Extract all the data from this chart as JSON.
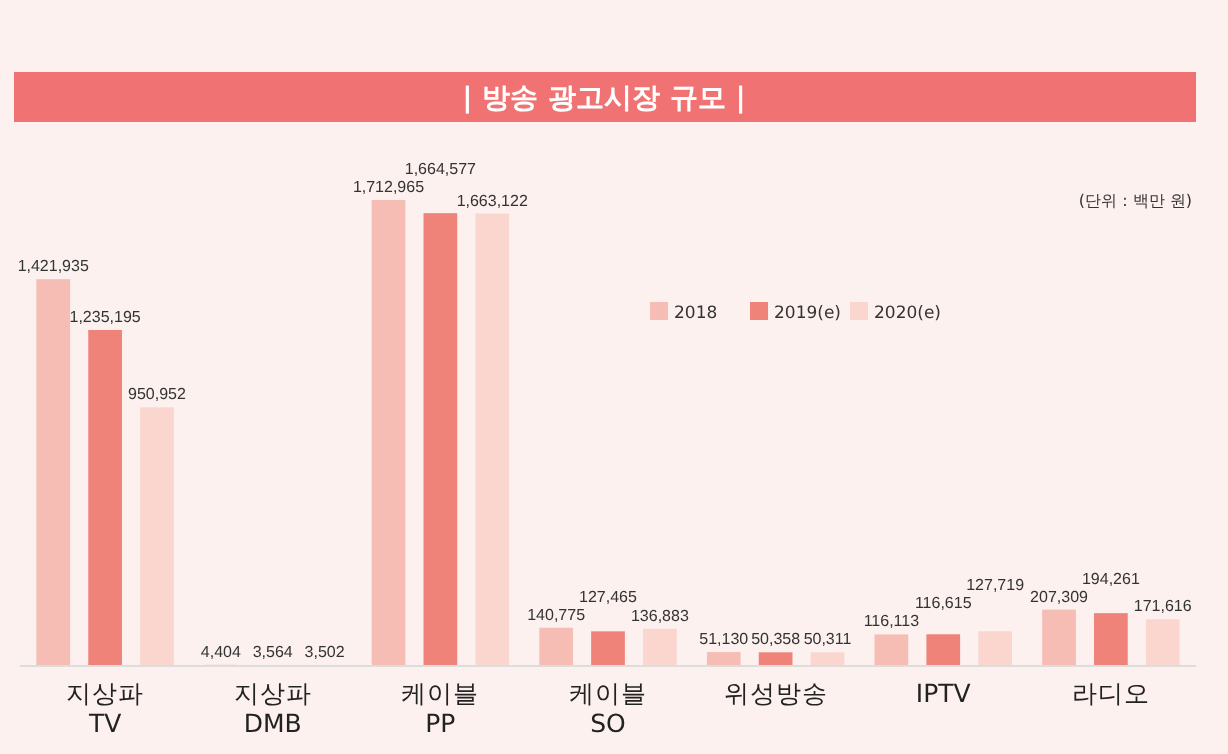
{
  "chart_data": {
    "type": "bar",
    "title": "| 방송 광고시장 규모 |",
    "annotations": [
      "(단위 : 백만 원)"
    ],
    "categories": [
      "지상파 TV",
      "지상파 DMB",
      "케이블 PP",
      "케이블 SO",
      "위성방송",
      "IPTV",
      "라디오"
    ],
    "series": [
      {
        "name": "2018",
        "color": "#f6bdb5",
        "values": [
          1421935,
          4404,
          1712965,
          140775,
          51130,
          116113,
          207309
        ],
        "value_labels": [
          "1,421,935",
          "4,404",
          "1,712,965",
          "140,775",
          "51,130",
          "116,113",
          "207,309"
        ]
      },
      {
        "name": "2019(e)",
        "color": "#ef8279",
        "values": [
          1235195,
          3564,
          1664577,
          127465,
          50358,
          116615,
          194261
        ],
        "value_labels": [
          "1,235,195",
          "3,564",
          "1,664,577",
          "127,465",
          "50,358",
          "116,615",
          "194,261"
        ]
      },
      {
        "name": "2020(e)",
        "color": "#fad6cf",
        "values": [
          950952,
          3502,
          1663122,
          136883,
          50311,
          127719,
          171616
        ],
        "value_labels": [
          "950,952",
          "3,502",
          "1,663,122",
          "136,883",
          "50,311",
          "127,719",
          "171,616"
        ]
      }
    ],
    "legend": "top right"
  }
}
